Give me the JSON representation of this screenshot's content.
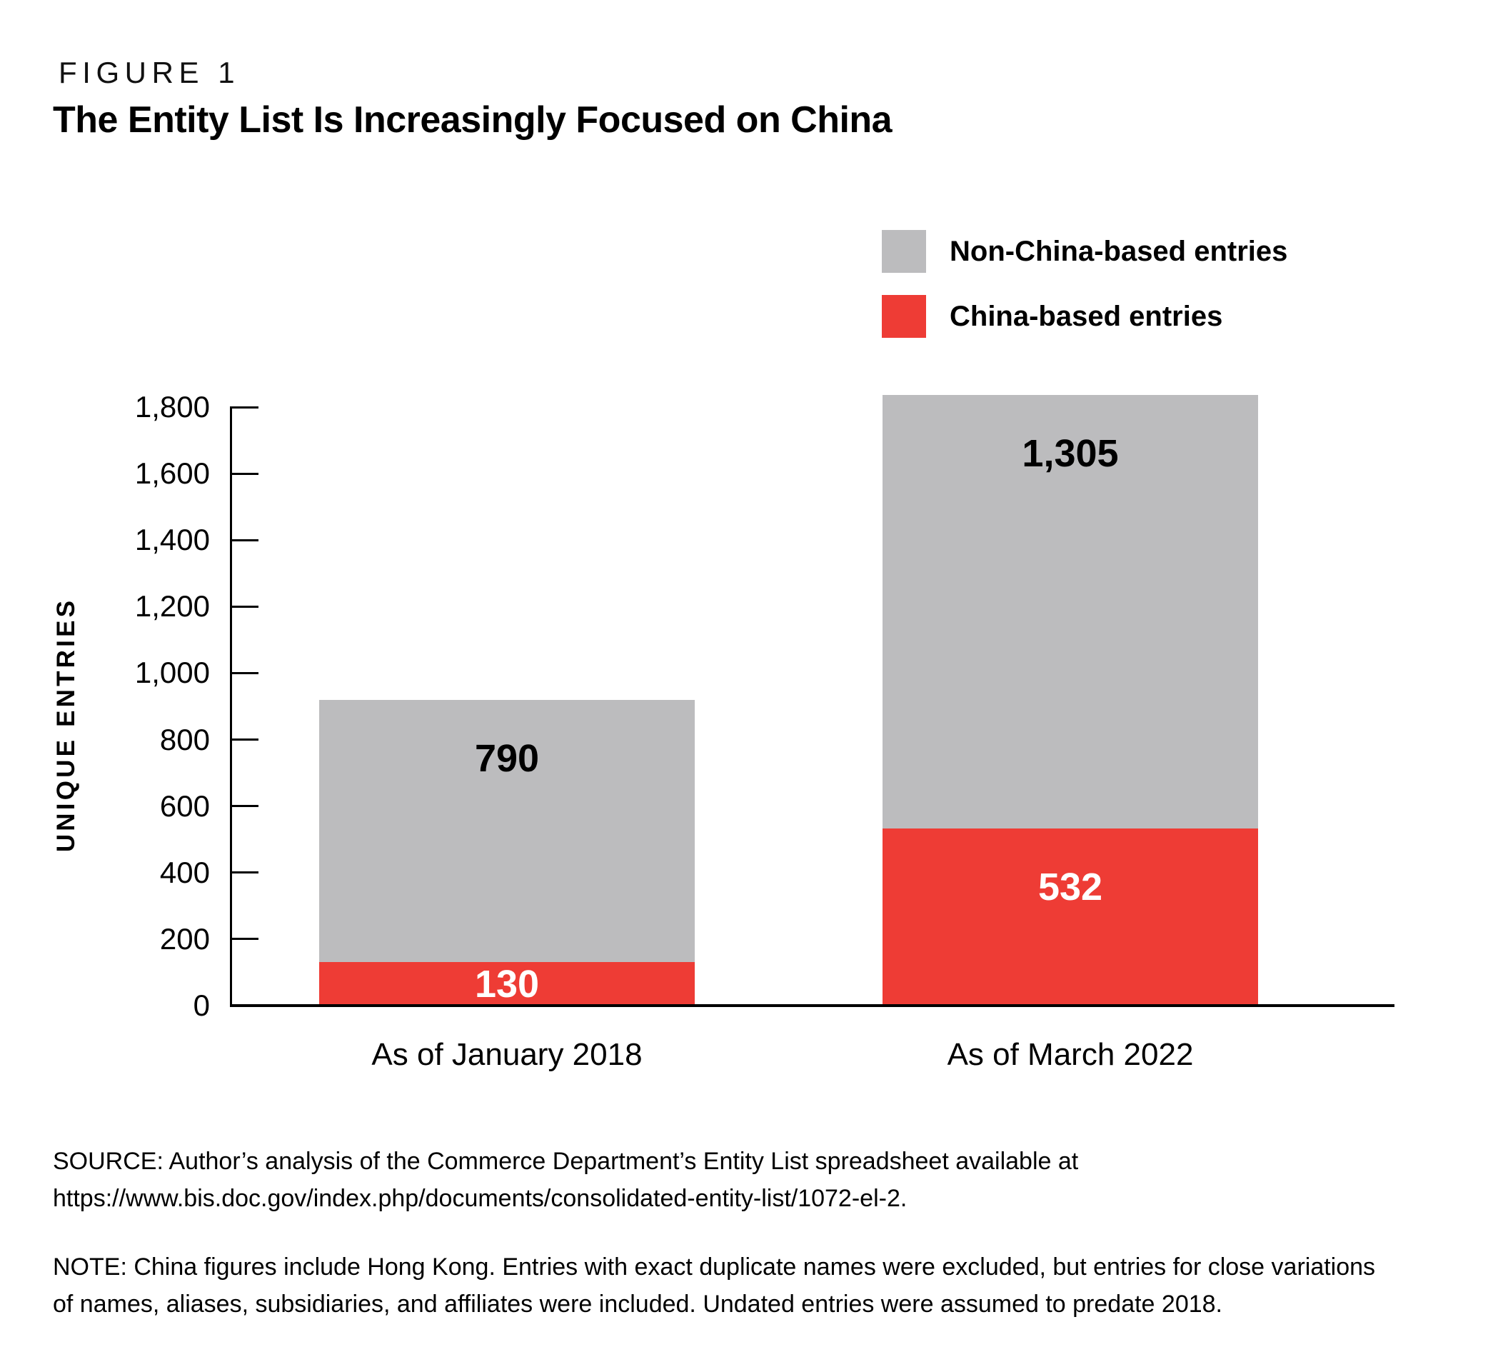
{
  "figure": {
    "label": "FIGURE 1",
    "title": "The Entity List Is Increasingly Focused on China"
  },
  "legend": [
    {
      "label": "Non-China-based entries",
      "color": "#bcbcbe"
    },
    {
      "label": "China-based entries",
      "color": "#ee3c35"
    }
  ],
  "chart_data": {
    "type": "bar",
    "stacked": true,
    "title": "The Entity List Is Increasingly Focused on China",
    "categories": [
      "As of January 2018",
      "As of March 2022"
    ],
    "series": [
      {
        "name": "China-based entries",
        "values": [
          130,
          532
        ],
        "color": "#ee3c35",
        "label_color": "#ffffff"
      },
      {
        "name": "Non-China-based entries",
        "values": [
          790,
          1305
        ],
        "color": "#bcbcbe",
        "label_color": "#000000"
      }
    ],
    "totals": [
      920,
      1837
    ],
    "ylabel": "UNIQUE ENTRIES",
    "xlabel": "",
    "ylim": [
      0,
      1800
    ],
    "ytick_step": 200,
    "grid": false,
    "legend_position": "top-right",
    "axis_color": "#000000"
  },
  "source": "SOURCE: Author’s analysis of the Commerce Department’s Entity List spreadsheet available at\nhttps://www.bis.doc.gov/index.php/documents/consolidated-entity-list/1072-el-2.",
  "note": "NOTE: China figures include Hong Kong. Entries with exact duplicate names were excluded, but entries for close variations\nof names, aliases, subsidiaries, and affiliates were included. Undated entries were assumed to predate 2018."
}
